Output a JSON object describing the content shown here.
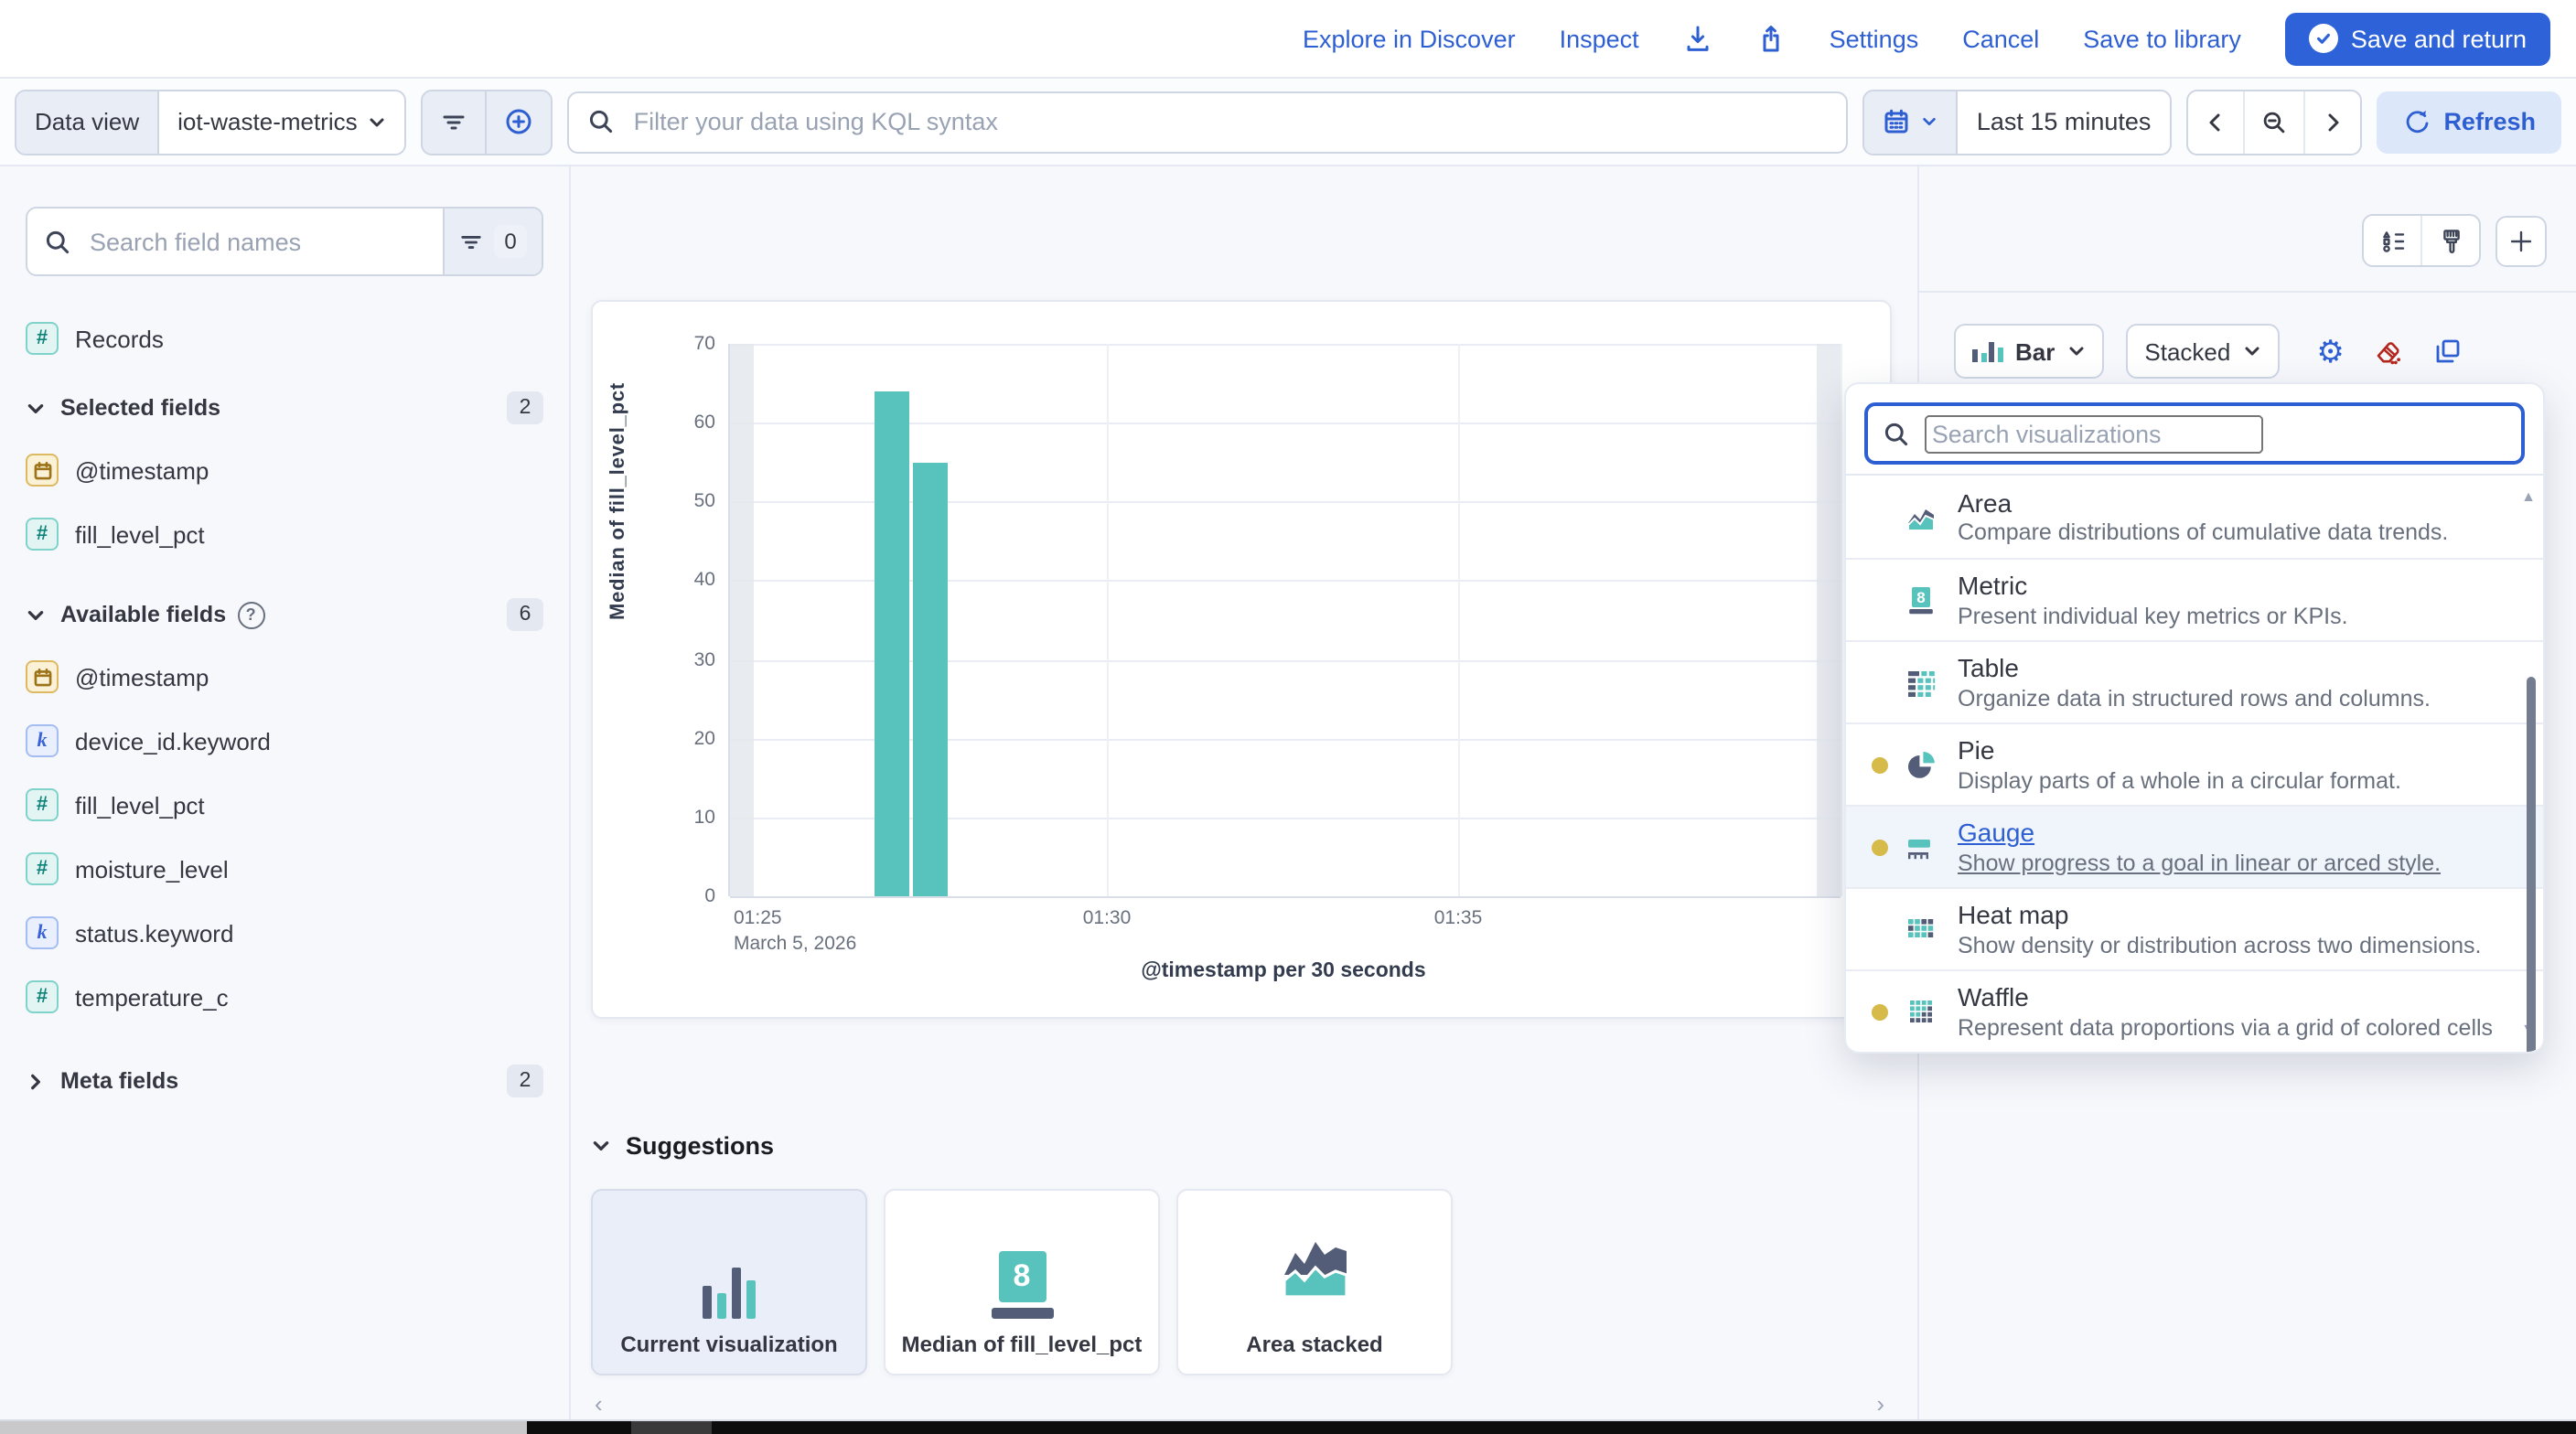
{
  "header": {
    "explore": "Explore in Discover",
    "inspect": "Inspect",
    "settings": "Settings",
    "cancel": "Cancel",
    "save_to_library": "Save to library",
    "save_and_return": "Save and return"
  },
  "toolbar": {
    "data_view_label": "Data view",
    "data_view_value": "iot-waste-metrics",
    "kql_placeholder": "Filter your data using KQL syntax",
    "time_range": "Last 15 minutes",
    "refresh_label": "Refresh"
  },
  "sidebar": {
    "search_placeholder": "Search field names",
    "filter_count": "0",
    "records_label": "Records",
    "selected": {
      "label": "Selected fields",
      "count": "2",
      "fields": [
        {
          "name": "@timestamp",
          "type": "date"
        },
        {
          "name": "fill_level_pct",
          "type": "number"
        }
      ]
    },
    "available": {
      "label": "Available fields",
      "count": "6",
      "fields": [
        {
          "name": "@timestamp",
          "type": "date"
        },
        {
          "name": "device_id.keyword",
          "type": "keyword"
        },
        {
          "name": "fill_level_pct",
          "type": "number"
        },
        {
          "name": "moisture_level",
          "type": "number"
        },
        {
          "name": "status.keyword",
          "type": "keyword"
        },
        {
          "name": "temperature_c",
          "type": "number"
        }
      ]
    },
    "meta": {
      "label": "Meta fields",
      "count": "2"
    }
  },
  "chart_data": {
    "type": "bar",
    "series_name": "Median of fill_level_pct",
    "ylabel": "Median of fill_level_pct",
    "xlabel": "@timestamp per 30 seconds",
    "ylim": [
      0,
      70
    ],
    "y_ticks": [
      70,
      60,
      50,
      40,
      30,
      20,
      10,
      0
    ],
    "x_ticks": [
      "01:25",
      "01:30",
      "01:35"
    ],
    "x_date_label": "March 5, 2026",
    "bars": [
      {
        "x_pct": 13.0,
        "value": 64
      },
      {
        "x_pct": 16.5,
        "value": 55
      }
    ],
    "bar_color": "#58c2bc",
    "grid": true,
    "legend": "none"
  },
  "suggestions": {
    "title": "Suggestions",
    "cards": [
      {
        "label": "Current visualization",
        "selected": true
      },
      {
        "label": "Median of fill_level_pct",
        "selected": false
      },
      {
        "label": "Area stacked",
        "selected": false
      }
    ]
  },
  "right_panel": {
    "chart_type": "Bar",
    "stack_mode": "Stacked"
  },
  "viz_picker": {
    "search_placeholder": "Search visualizations",
    "options": [
      {
        "title": "Area",
        "desc": "Compare distributions of cumulative data trends.",
        "dot": false
      },
      {
        "title": "Metric",
        "desc": "Present individual key metrics or KPIs.",
        "dot": false
      },
      {
        "title": "Table",
        "desc": "Organize data in structured rows and columns.",
        "dot": false
      },
      {
        "title": "Pie",
        "desc": "Display parts of a whole in a circular format.",
        "dot": true
      },
      {
        "title": "Gauge",
        "desc": "Show progress to a goal in linear or arced style.",
        "dot": true,
        "hovered": true
      },
      {
        "title": "Heat map",
        "desc": "Show density or distribution across two dimensions.",
        "dot": false
      },
      {
        "title": "Waffle",
        "desc": "Represent data proportions via a grid of colored cells",
        "dot": true
      }
    ]
  },
  "icons": {
    "download-icon": "arrow-down-to-tray",
    "share-icon": "box-arrow-up",
    "check-circle-icon": "circled check",
    "calendar-icon": "calendar",
    "filter-icon": "filter lines",
    "plus-circle-icon": "plus in circle",
    "search-icon": "magnifier",
    "zoom-out-icon": "magnifier with minus",
    "refresh-icon": "circular arrow",
    "gear-icon": "⚙",
    "eraser-icon": "eraser",
    "copy-icon": "two squares",
    "layers-icon": "shape list",
    "paintbrush-icon": "brush",
    "plus-icon": "+"
  },
  "colors": {
    "accent_teal": "#58c2bc",
    "primary_blue": "#2d62d8",
    "danger_red": "#b3271e",
    "warning_dot": "#d6ba4a"
  }
}
